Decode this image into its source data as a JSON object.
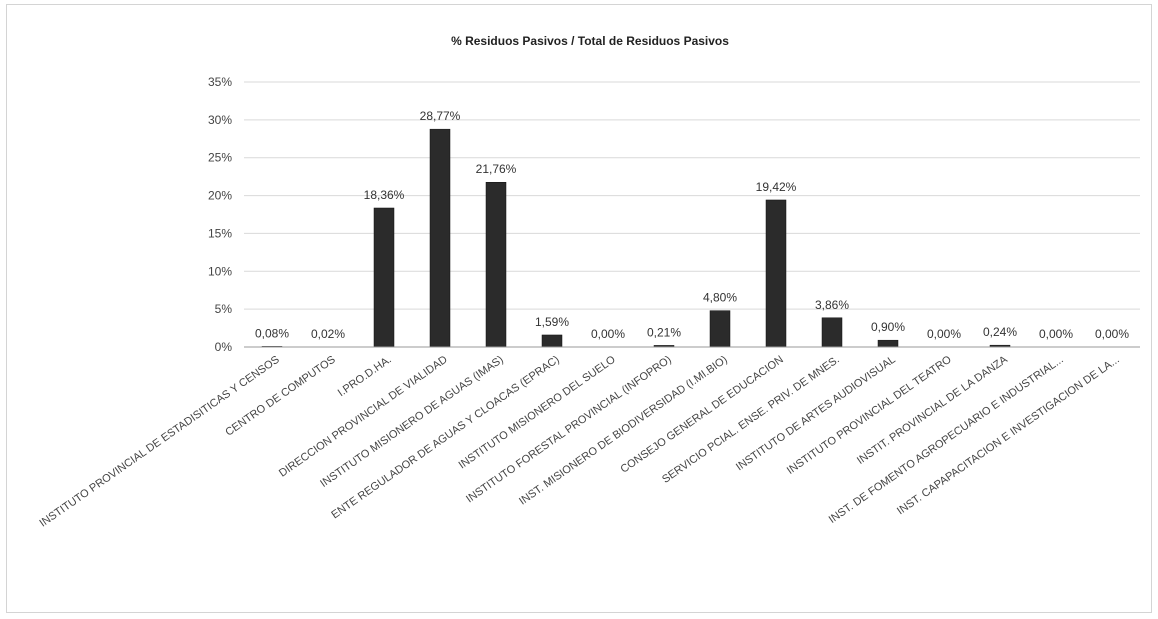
{
  "chart_data": {
    "type": "bar",
    "title": "% Residuos Pasivos / Total de Residuos Pasivos",
    "xlabel": "",
    "ylabel": "",
    "ylim": [
      0,
      35
    ],
    "yticks": [
      "0%",
      "5%",
      "10%",
      "15%",
      "20%",
      "25%",
      "30%",
      "35%"
    ],
    "grid": true,
    "legend": "none",
    "bar_color": "#2b2b2b",
    "categories": [
      "INSTITUTO PROVINCIAL DE ESTADISITICAS Y CENSOS",
      "CENTRO DE COMPUTOS",
      "I.PRO.D.HA.",
      "DIRECCION PROVINCIAL DE VIALIDAD",
      "INSTITUTO MISIONERO DE AGUAS (IMAS)",
      "ENTE REGULADOR DE AGUAS Y CLOACAS (EPRAC)",
      "INSTITUTO MISIONERO DEL SUELO",
      "INSTITUTO FORESTAL PROVINCIAL (INFOPRO)",
      "INST. MISIONERO DE BIODIVERSIDAD (I.MI.BIO)",
      "CONSEJO GENERAL DE EDUCACION",
      "SERVICIO PCIAL. ENSE. PRIV. DE MNES.",
      "INSTITUTO DE ARTES AUDIOVISUAL",
      "INSTITUTO PROVINCIAL DEL TEATRO",
      "INSTIT. PROVINCIAL DE LA DANZA",
      "INST. DE FOMENTO AGROPECUARIO E INDUSTRIAL...",
      "INST. CAPAPACITACION E INVESTIGACION DE LA..."
    ],
    "values": [
      0.08,
      0.02,
      18.36,
      28.77,
      21.76,
      1.59,
      0.0,
      0.21,
      4.8,
      19.42,
      3.86,
      0.9,
      0.0,
      0.24,
      0.0,
      0.0
    ],
    "data_labels": [
      "0,08%",
      "0,02%",
      "18,36%",
      "28,77%",
      "21,76%",
      "1,59%",
      "0,00%",
      "0,21%",
      "4,80%",
      "19,42%",
      "3,86%",
      "0,90%",
      "0,00%",
      "0,24%",
      "0,00%",
      "0,00%"
    ]
  }
}
